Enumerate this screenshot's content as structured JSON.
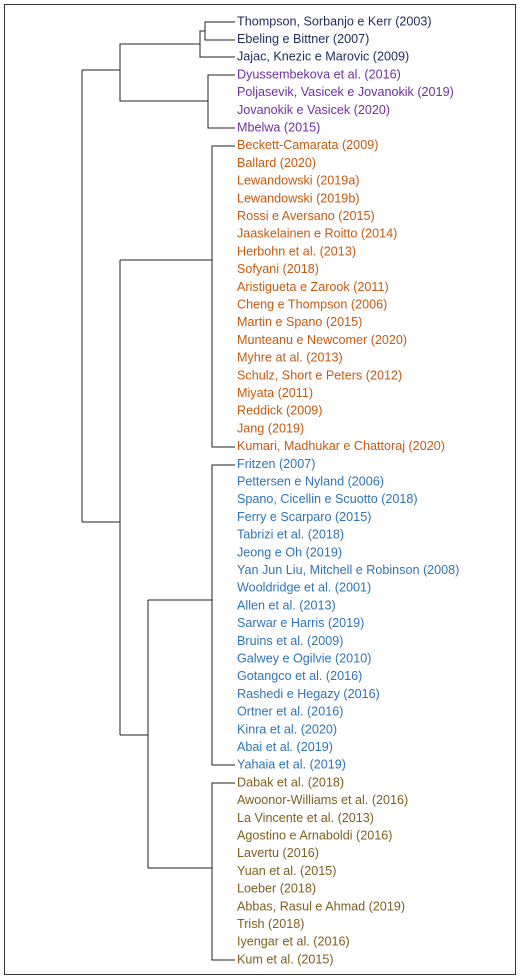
{
  "clusters": [
    {
      "labels": [
        "Thompson, Sorbanjo e Kerr (2003)",
        "Ebeling e Bittner (2007)",
        "Jajac, Knezic e Marovic (2009)"
      ]
    },
    {
      "labels": [
        "Dyussembekova et al. (2016)",
        "Poljasevik, Vasicek e Jovanokik (2019)",
        "Jovanokik e Vasicek (2020)",
        "Mbelwa (2015)"
      ]
    },
    {
      "labels": [
        "Beckett-Camarata (2009)",
        "Ballard (2020)",
        "Lewandowski (2019a)",
        "Lewandowski (2019b)",
        "Rossi e Aversano (2015)",
        "Jaaskelainen e Roitto (2014)",
        "Herbohn et al. (2013)",
        "Sofyani (2018)",
        "Aristigueta e Zarook (2011)",
        "Cheng e Thompson (2006)",
        "Martin e Spano (2015)",
        "Munteanu e Newcomer (2020)",
        "Myhre at al. (2013)",
        "Schulz, Short e Peters (2012)",
        "Miyata (2011)",
        "Reddick (2009)",
        "Jang (2019)",
        "Kumari, Madhukar e Chattoraj (2020)"
      ]
    },
    {
      "labels": [
        "Fritzen (2007)",
        "Pettersen e Nyland (2006)",
        "Spano, Cicellin e Scuotto (2018)",
        "Ferry e Scarparo (2015)",
        "Tabrizi et al. (2018)",
        "Jeong e Oh (2019)",
        "Yan Jun Liu, Mitchell e Robinson (2008)",
        "Wooldridge et al. (2001)",
        "Allen et al. (2013)",
        "Sarwar e Harris (2019)",
        "Bruins et al. (2009)",
        "Galwey e Ogilvie (2010)",
        "Gotangco et al. (2016)",
        "Rashedi e Hegazy (2016)",
        "Ortner et al. (2016)",
        "Kinra et al. (2020)",
        "Abai et al. (2019)",
        "Yahaia et al. (2019)"
      ]
    },
    {
      "labels": [
        "Dabak et al. (2018)",
        "Awoonor-Williams et al. (2016)",
        "La Vincente et al. (2013)",
        "Agostino e Arnaboldi (2016)",
        "Lavertu (2016)",
        "Yuan et al. (2015)",
        "Loeber (2018)",
        "Abbas, Rasul e Ahmad (2019)",
        "Trish (2018)",
        "Iyengar et al. (2016)",
        "Kum et al. (2015)"
      ]
    }
  ]
}
